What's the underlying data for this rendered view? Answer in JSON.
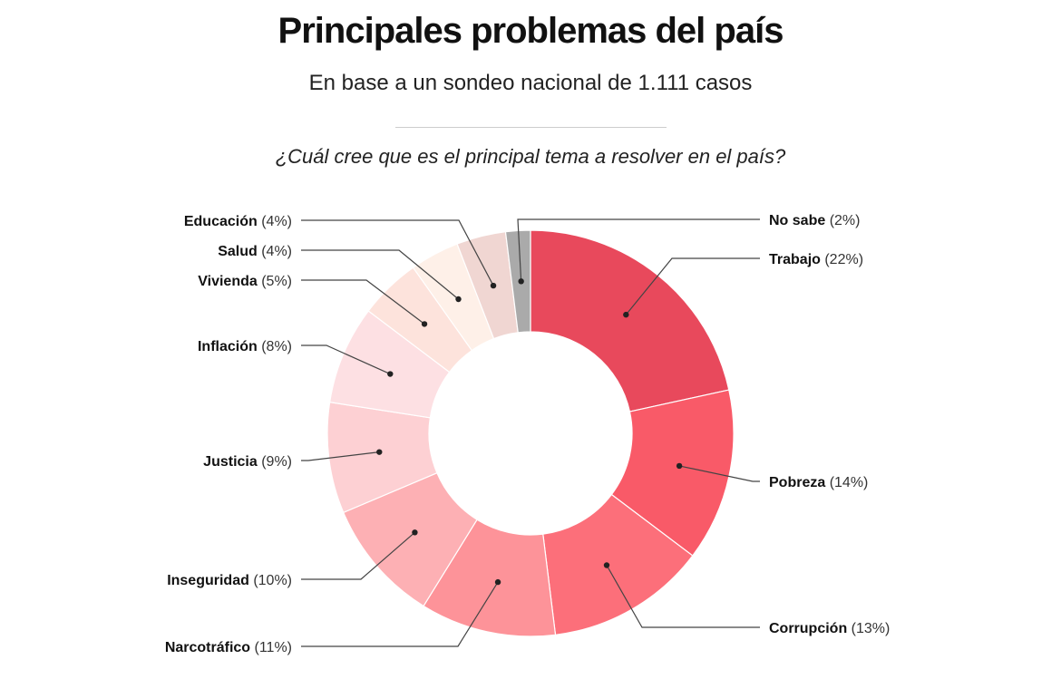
{
  "header": {
    "title": "Principales problemas del país",
    "subtitle": "En base a un sondeo nacional de 1.111 casos",
    "question": "¿Cuál cree que es el principal tema a resolver en el país?"
  },
  "chart_data": {
    "type": "pie",
    "variant": "donut",
    "title": "Principales problemas del país",
    "unit": "%",
    "slices": [
      {
        "name": "Trabajo",
        "value": 22,
        "label": "(22%)",
        "color": "#e8495c"
      },
      {
        "name": "Pobreza",
        "value": 14,
        "label": "(14%)",
        "color": "#f95a68"
      },
      {
        "name": "Corrupción",
        "value": 13,
        "label": "(13%)",
        "color": "#fc6f7a"
      },
      {
        "name": "Narcotráfico",
        "value": 11,
        "label": "(11%)",
        "color": "#fd9399"
      },
      {
        "name": "Inseguridad",
        "value": 10,
        "label": "(10%)",
        "color": "#fdb0b4"
      },
      {
        "name": "Justicia",
        "value": 9,
        "label": "(9%)",
        "color": "#fdd0d3"
      },
      {
        "name": "Inflación",
        "value": 8,
        "label": "(8%)",
        "color": "#fde0e3"
      },
      {
        "name": "Vivienda",
        "value": 5,
        "label": "(5%)",
        "color": "#fde3dc"
      },
      {
        "name": "Salud",
        "value": 4,
        "label": "(4%)",
        "color": "#fef0e8"
      },
      {
        "name": "Educación",
        "value": 4,
        "label": "(4%)",
        "color": "#f0d6d2"
      },
      {
        "name": "No sabe",
        "value": 2,
        "label": "(2%)",
        "color": "#aaaaaa"
      }
    ]
  }
}
